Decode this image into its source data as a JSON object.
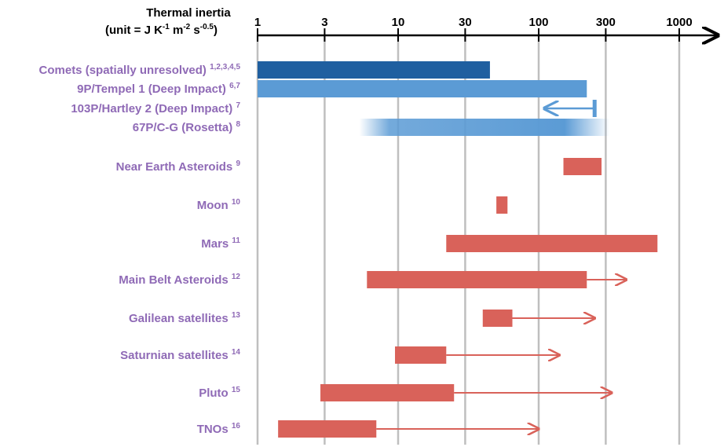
{
  "chart_data": {
    "type": "range-bar",
    "scale": "log",
    "xlim": [
      1,
      1000
    ],
    "axis_title": {
      "line1": "Thermal inertia",
      "line2": {
        "prefix": "(unit =  J K",
        "k_exp": "-1",
        "m_text": " m",
        "m_exp": "-2",
        "s_text": " s",
        "s_exp": "-0.5",
        "suffix": ")"
      }
    },
    "ticks": [
      {
        "value": 1,
        "label": "1"
      },
      {
        "value": 3,
        "label": "3"
      },
      {
        "value": 10,
        "label": "10"
      },
      {
        "value": 30,
        "label": "30"
      },
      {
        "value": 100,
        "label": "100"
      },
      {
        "value": 300,
        "label": "300"
      },
      {
        "value": 1000,
        "label": "1000"
      }
    ],
    "grid": true,
    "colors": {
      "comet_dark": "#1f5fa0",
      "comet_light": "#5b9bd5",
      "other": "#d9625a",
      "label": "#8f6ab6",
      "grid": "#bfbfbf"
    },
    "rows": [
      {
        "label": "Comets (spatially unresolved)",
        "ref": "1,2,3,4,5",
        "start": 1,
        "end": 45,
        "style": "comet_dark"
      },
      {
        "label": "9P/Tempel 1 (Deep Impact)",
        "ref": "6,7",
        "start": 1,
        "end": 220,
        "style": "comet_light"
      },
      {
        "label": "103P/Hartley 2 (Deep Impact)",
        "ref": "7",
        "marker": 250,
        "arrow_to": 110,
        "style": "comet_arrow"
      },
      {
        "label": "67P/C-G (Rosetta)",
        "ref": "8",
        "start": 5.3,
        "end": 320,
        "style": "comet_gradient"
      },
      {
        "label": "Near Earth Asteroids",
        "ref": "9",
        "start": 150,
        "end": 280,
        "style": "other"
      },
      {
        "label": "Moon",
        "ref": "10",
        "start": 50,
        "end": 60,
        "style": "other"
      },
      {
        "label": "Mars",
        "ref": "11",
        "start": 22,
        "end": 700,
        "style": "other"
      },
      {
        "label": "Main Belt Asteroids",
        "ref": "12",
        "start": 6,
        "end": 220,
        "arrow_to": 420,
        "style": "other"
      },
      {
        "label": "Galilean satellites",
        "ref": "13",
        "start": 40,
        "end": 65,
        "arrow_to": 250,
        "style": "other"
      },
      {
        "label": "Saturnian satellites",
        "ref": "14",
        "start": 9.5,
        "end": 22,
        "arrow_to": 140,
        "style": "other"
      },
      {
        "label": "Pluto",
        "ref": "15",
        "start": 2.8,
        "end": 25,
        "arrow_to": 330,
        "style": "other"
      },
      {
        "label": "TNOs",
        "ref": "16",
        "start": 1.4,
        "end": 7,
        "arrow_to": 100,
        "style": "other"
      }
    ]
  }
}
